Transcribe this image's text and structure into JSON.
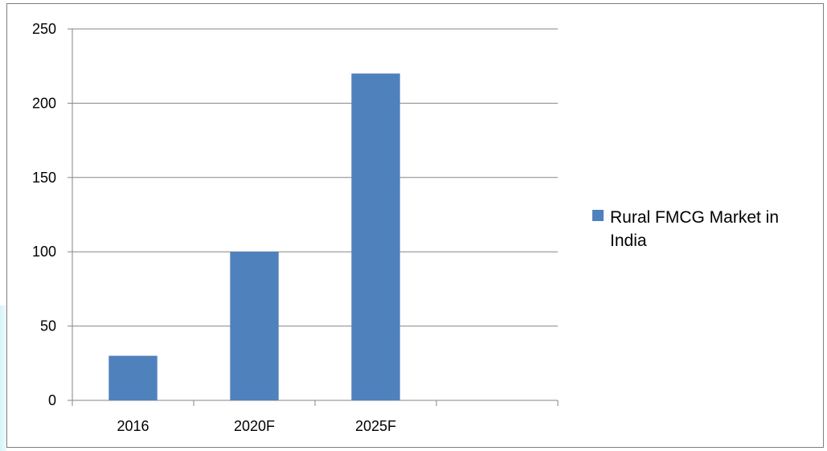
{
  "chart_data": {
    "type": "bar",
    "title": "",
    "xlabel": "",
    "ylabel": "",
    "categories": [
      "2016",
      "2020F",
      "2025F",
      ""
    ],
    "series": [
      {
        "name": "Rural FMCG Market in India",
        "values": [
          30,
          100,
          220,
          null
        ],
        "color": "#4f81bd"
      }
    ],
    "ylim": [
      0,
      250
    ],
    "yticks": [
      0,
      50,
      100,
      150,
      200,
      250
    ],
    "grid": true,
    "legend": {
      "placement": "right",
      "lines": [
        "Rural FMCG Market in",
        "India"
      ]
    }
  }
}
